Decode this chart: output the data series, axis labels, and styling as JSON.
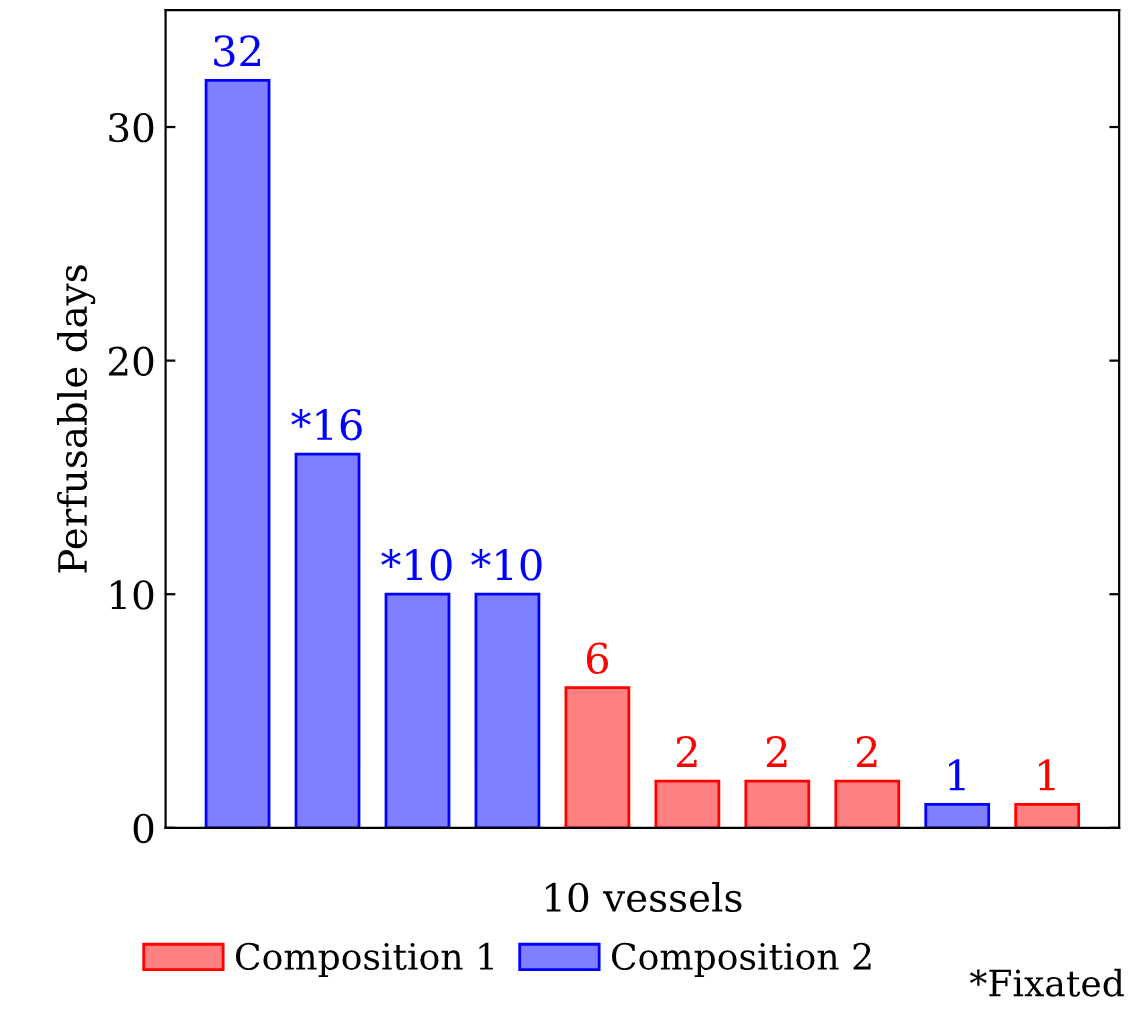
{
  "chart_data": {
    "type": "bar",
    "xlabel": "10 vessels",
    "ylabel": "Perfusable days",
    "categories": [
      null,
      null,
      null,
      null,
      null,
      null,
      null,
      null,
      null,
      null
    ],
    "series": [
      {
        "name": "Composition 1",
        "color": "#ff8080",
        "values": [
          null,
          null,
          null,
          null,
          6,
          2,
          2,
          2,
          null,
          1
        ],
        "value_labels": [
          null,
          null,
          null,
          null,
          "6",
          "2",
          "2",
          "2",
          null,
          "1"
        ]
      },
      {
        "name": "Composition 2",
        "color": "#8080ff",
        "values": [
          32,
          16,
          10,
          10,
          null,
          null,
          null,
          null,
          1,
          null
        ],
        "value_labels": [
          "32",
          "*16",
          "*10",
          "*10",
          null,
          null,
          null,
          null,
          "1",
          null
        ]
      }
    ],
    "ylim": [
      0,
      35
    ],
    "yticks": [
      0,
      10,
      20,
      30
    ],
    "legend": "bottom",
    "annotations": [
      "*Fixated"
    ]
  }
}
